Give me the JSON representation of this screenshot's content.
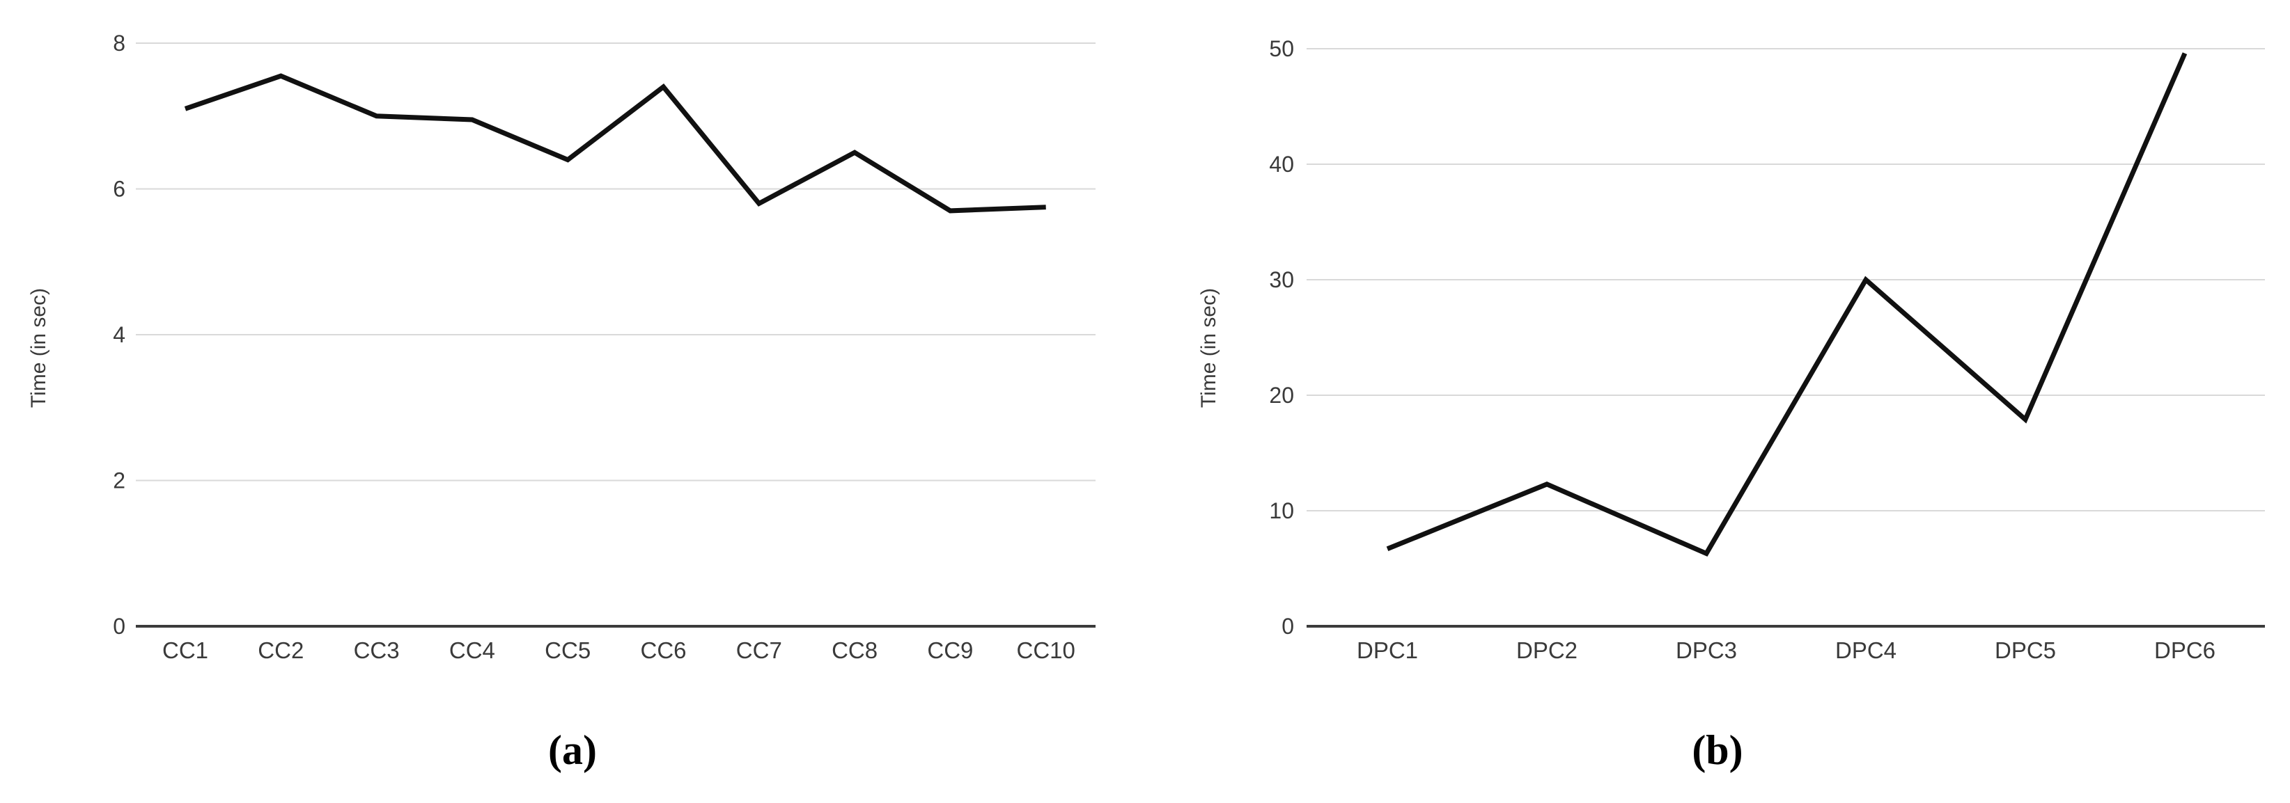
{
  "page": {
    "background": "#ffffff"
  },
  "colors": {
    "line": "#111111",
    "grid": "#d9d9d9",
    "axis": "#3c3c3c",
    "tick_text": "#3a3a3a",
    "caption_text": "#000000"
  },
  "chart_data": [
    {
      "type": "line",
      "figure_label": "(a)",
      "title": "",
      "xlabel": "",
      "ylabel": "Time (in sec)",
      "categories": [
        "CC1",
        "CC2",
        "CC3",
        "CC4",
        "CC5",
        "CC6",
        "CC7",
        "CC8",
        "CC9",
        "CC10"
      ],
      "values": [
        7.1,
        7.55,
        7.0,
        6.95,
        6.4,
        7.4,
        5.8,
        6.5,
        5.7,
        5.75
      ],
      "ylim": [
        0,
        8
      ],
      "yticks": [
        0,
        2,
        4,
        6,
        8
      ],
      "grid": "horizontal",
      "legend": "none",
      "line_color": "#111111"
    },
    {
      "type": "line",
      "figure_label": "(b)",
      "title": "",
      "xlabel": "",
      "ylabel": "Time (in sec)",
      "categories": [
        "DPC1",
        "DPC2",
        "DPC3",
        "DPC4",
        "DPC5",
        "DPC6"
      ],
      "values": [
        6.7,
        12.3,
        6.3,
        30,
        17.9,
        49.6
      ],
      "ylim": [
        0,
        50
      ],
      "yticks": [
        0,
        10,
        20,
        30,
        40,
        50
      ],
      "grid": "horizontal",
      "legend": "none",
      "line_color": "#111111"
    }
  ]
}
